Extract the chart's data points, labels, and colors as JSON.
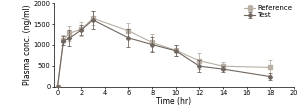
{
  "time": [
    0,
    0.5,
    1,
    2,
    3,
    6,
    8,
    10,
    12,
    14,
    18
  ],
  "reference_mean": [
    0,
    1120,
    1280,
    1380,
    1640,
    1340,
    1060,
    870,
    620,
    490,
    460
  ],
  "reference_sd": [
    0,
    130,
    180,
    160,
    170,
    190,
    200,
    130,
    190,
    90,
    170
  ],
  "test_mean": [
    0,
    1100,
    1160,
    1360,
    1600,
    1170,
    1010,
    860,
    490,
    420,
    240
  ],
  "test_sd": [
    0,
    110,
    190,
    120,
    210,
    210,
    190,
    130,
    150,
    70,
    90
  ],
  "xlabel": "Time (hr)",
  "ylabel": "Plasma conc. (ng/ml)",
  "xlim": [
    -0.3,
    20
  ],
  "ylim": [
    0,
    2000
  ],
  "yticks": [
    0,
    500,
    1000,
    1500,
    2000
  ],
  "xticks": [
    0,
    2,
    4,
    6,
    8,
    10,
    12,
    14,
    16,
    18,
    20
  ],
  "ref_color": "#b8b0a4",
  "test_color": "#706660",
  "ref_marker": "s",
  "test_marker": "D",
  "ref_label": "--□- Reference",
  "test_label": "—◆— Test",
  "legend_fontsize": 5.0,
  "axis_fontsize": 5.5,
  "tick_fontsize": 4.8,
  "fig_width": 3.0,
  "fig_height": 1.11,
  "dpi": 100
}
